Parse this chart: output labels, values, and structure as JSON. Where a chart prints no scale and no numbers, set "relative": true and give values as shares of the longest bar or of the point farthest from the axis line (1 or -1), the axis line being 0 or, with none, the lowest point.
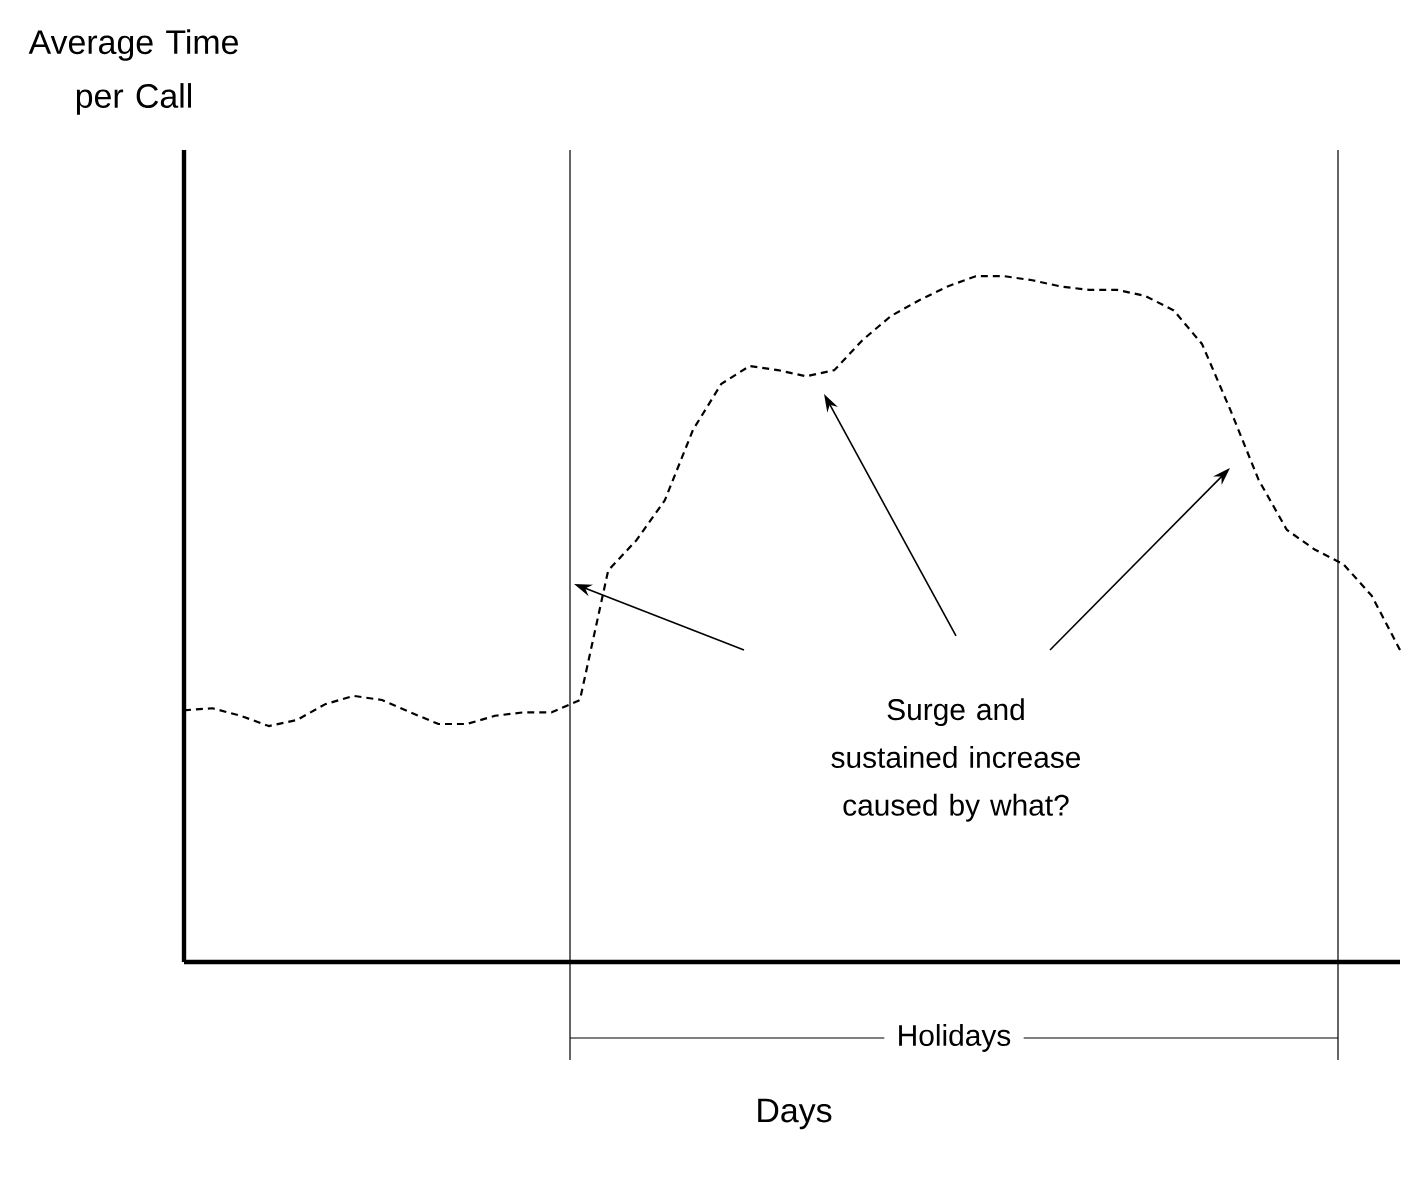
{
  "chart_data": {
    "type": "line",
    "relative": true,
    "xlabel": "Days",
    "ylabel": "Average Time per Call",
    "categories": [
      null,
      null,
      null,
      null,
      null,
      null,
      null,
      null,
      null,
      null,
      null,
      null,
      null,
      null,
      null,
      null,
      null,
      null,
      null,
      null,
      null,
      null,
      null,
      null,
      null,
      null,
      null,
      null,
      null,
      null,
      null,
      null,
      null,
      null,
      null,
      null,
      null,
      null,
      null,
      null,
      null,
      null,
      null,
      null
    ],
    "series": [
      {
        "color": "#000000",
        "line_style": "dashed",
        "marker": "none",
        "values": [
          0.367,
          0.37,
          0.359,
          0.344,
          0.353,
          0.376,
          0.388,
          0.382,
          0.364,
          0.347,
          0.347,
          0.359,
          0.364,
          0.364,
          0.382,
          0.571,
          0.615,
          0.673,
          0.776,
          0.843,
          0.869,
          0.863,
          0.854,
          0.863,
          0.907,
          0.942,
          0.965,
          0.985,
          1,
          1,
          0.994,
          0.985,
          0.98,
          0.98,
          0.971,
          0.95,
          0.901,
          0.805,
          0.703,
          0.63,
          0.601,
          0.58,
          0.534,
          0.455
        ]
      }
    ],
    "annotations": [
      "Surge and sustained increase caused by what?",
      "Holidays"
    ]
  }
}
